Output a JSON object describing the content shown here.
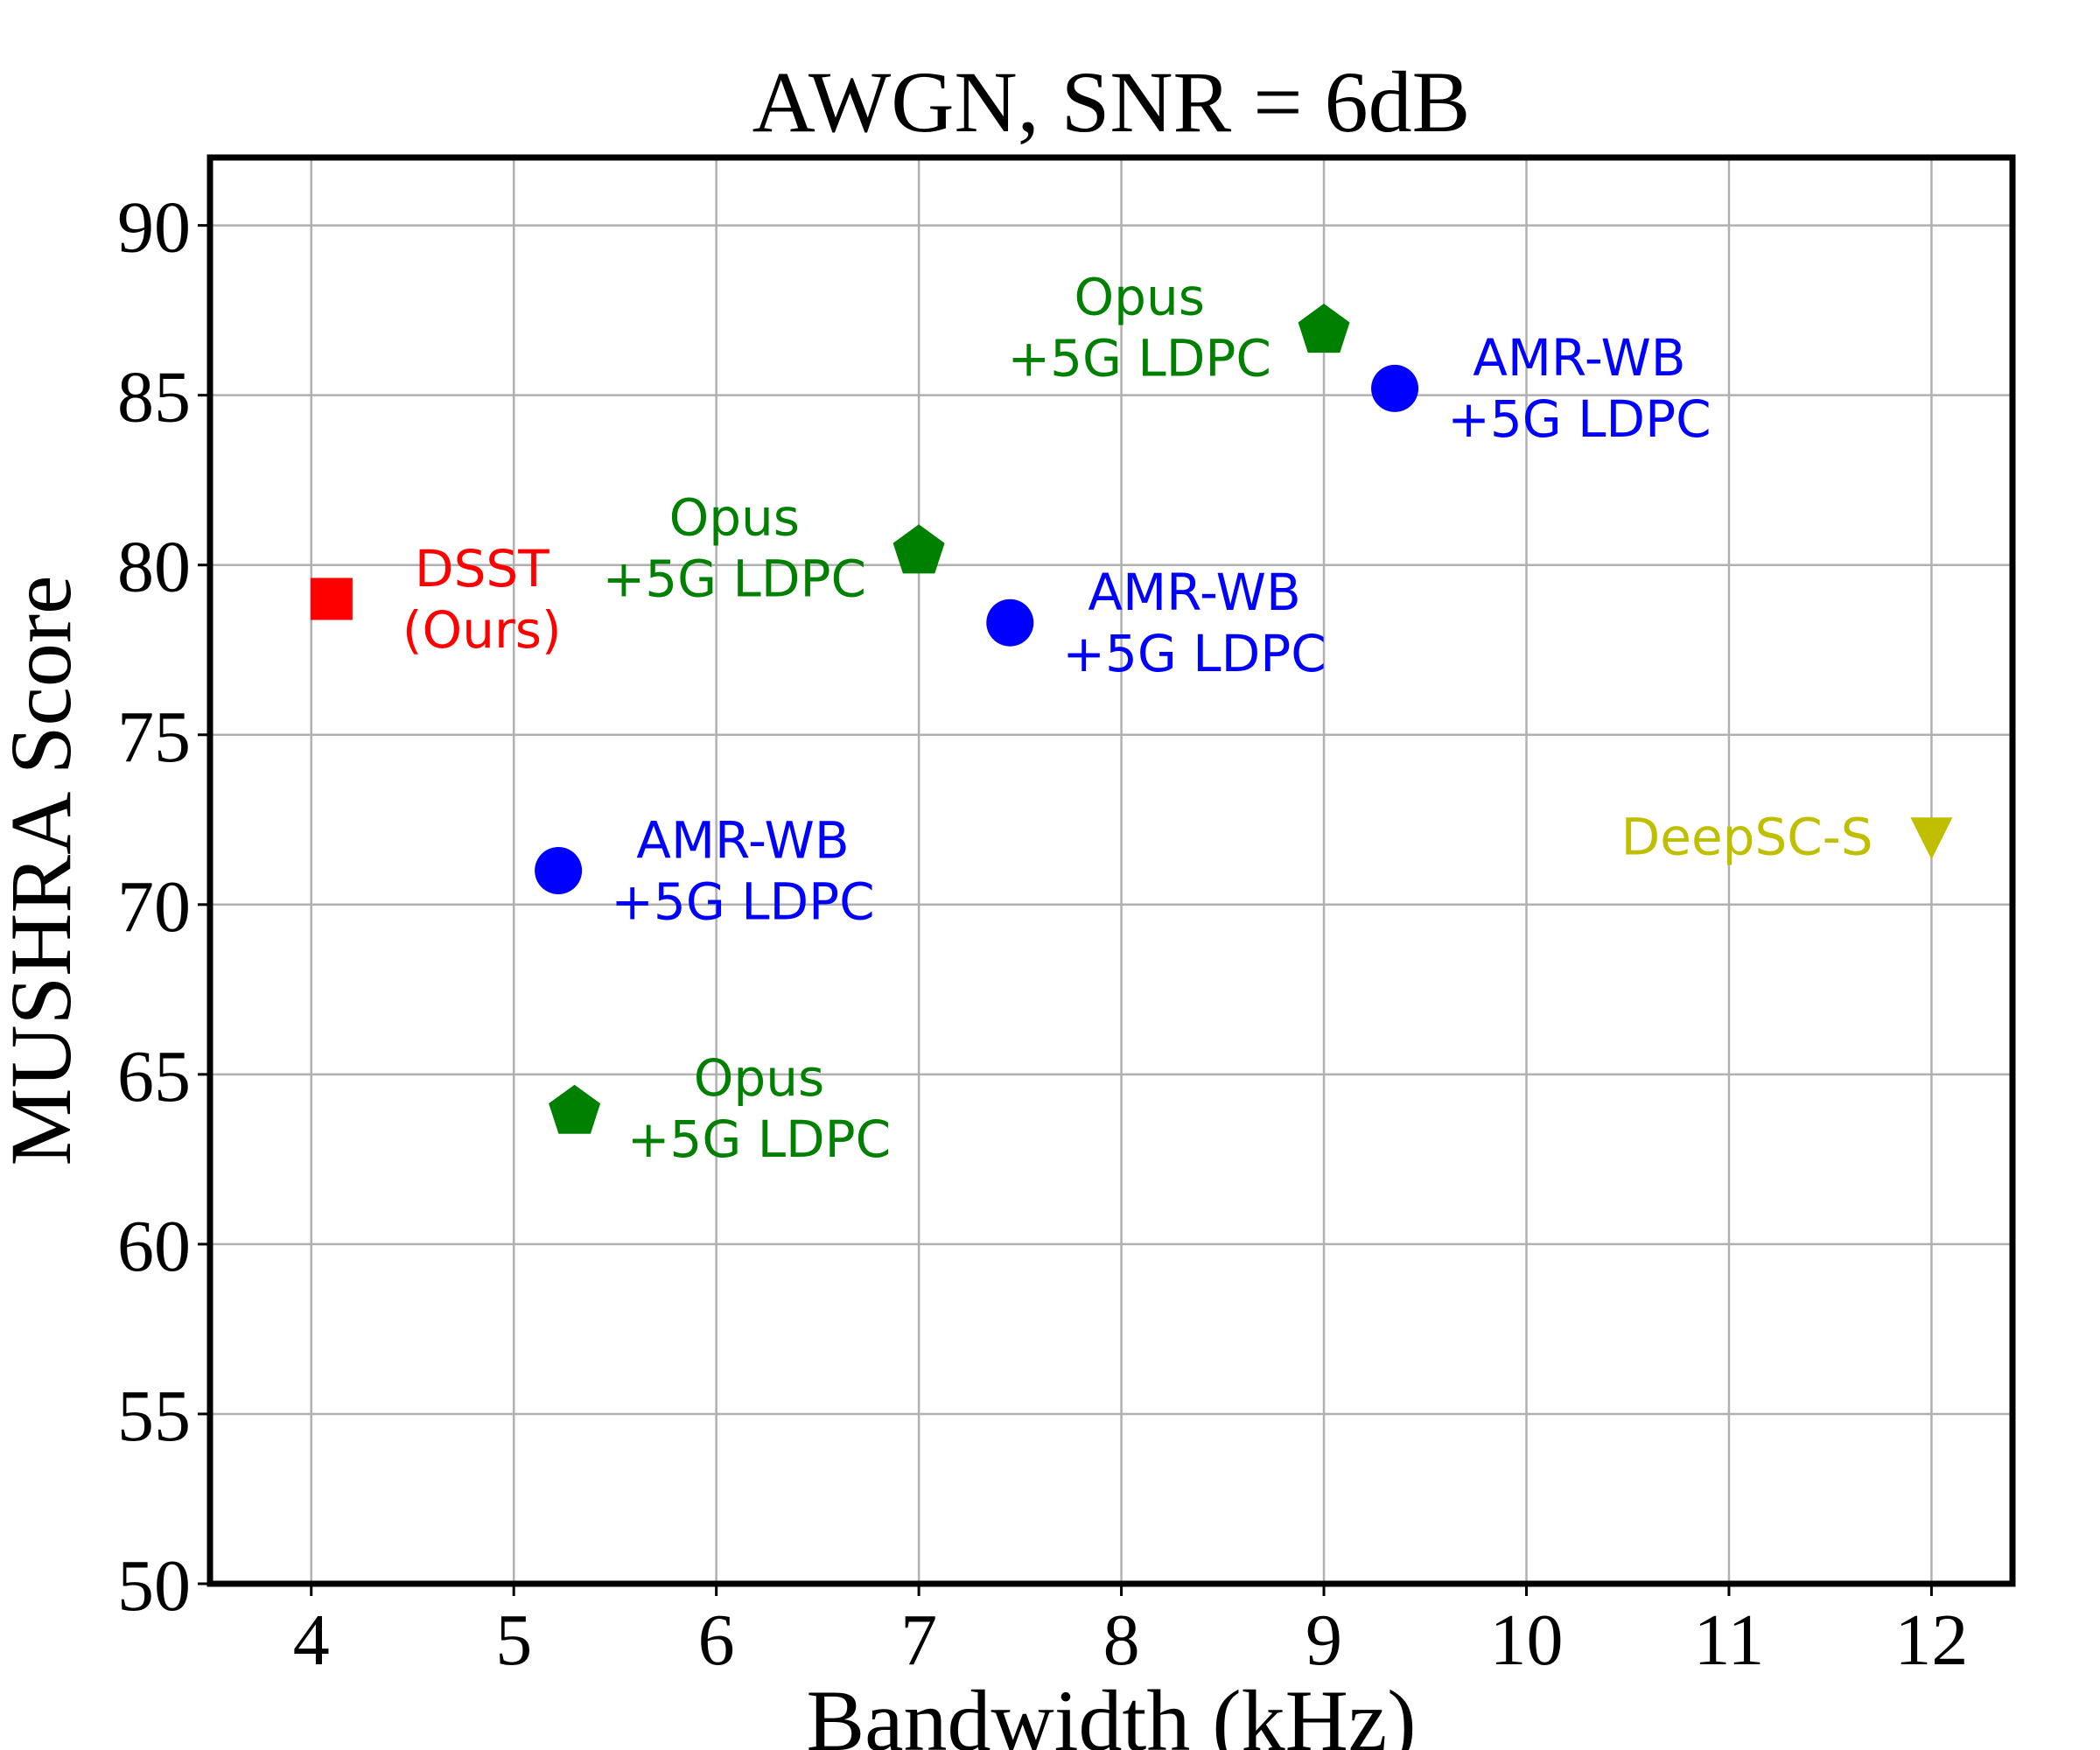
{
  "chart_data": {
    "type": "scatter",
    "title": "AWGN, SNR = 6dB",
    "xlabel": "Bandwidth (kHz)",
    "ylabel": "MUSHRA Score",
    "xlim": [
      3.5,
      12.4
    ],
    "ylim": [
      50,
      92
    ],
    "xticks": [
      4,
      5,
      6,
      7,
      8,
      9,
      10,
      11,
      12
    ],
    "yticks": [
      50,
      55,
      60,
      65,
      70,
      75,
      80,
      85,
      90
    ],
    "grid": true,
    "colors": {
      "dsst": "#ff0000",
      "opus": "#008000",
      "amr": "#0000ff",
      "deepsc": "#bfbf00"
    },
    "points": [
      {
        "series": "dsst",
        "marker": "square",
        "x": 4.1,
        "y": 79,
        "label": [
          "DSST",
          "(Ours)"
        ],
        "label_side": "right"
      },
      {
        "series": "opus",
        "marker": "pentagon",
        "x": 5.3,
        "y": 64,
        "label": [
          "Opus",
          "+5G LDPC"
        ],
        "label_side": "right"
      },
      {
        "series": "opus",
        "marker": "pentagon",
        "x": 7.0,
        "y": 80.5,
        "label": [
          "Opus",
          "+5G LDPC"
        ],
        "label_side": "left"
      },
      {
        "series": "opus",
        "marker": "pentagon",
        "x": 9.0,
        "y": 87,
        "label": [
          "Opus",
          "+5G LDPC"
        ],
        "label_side": "left"
      },
      {
        "series": "amr",
        "marker": "circle",
        "x": 5.22,
        "y": 71,
        "label": [
          "AMR-WB",
          "+5G LDPC"
        ],
        "label_side": "right"
      },
      {
        "series": "amr",
        "marker": "circle",
        "x": 7.45,
        "y": 78.3,
        "label": [
          "AMR-WB",
          "+5G LDPC"
        ],
        "label_side": "right"
      },
      {
        "series": "amr",
        "marker": "circle",
        "x": 9.35,
        "y": 85.2,
        "label": [
          "AMR-WB",
          "+5G LDPC"
        ],
        "label_side": "right"
      },
      {
        "series": "deepsc",
        "marker": "triangle-down",
        "x": 12.0,
        "y": 72,
        "label": [
          "DeepSC-S"
        ],
        "label_side": "left"
      }
    ]
  }
}
